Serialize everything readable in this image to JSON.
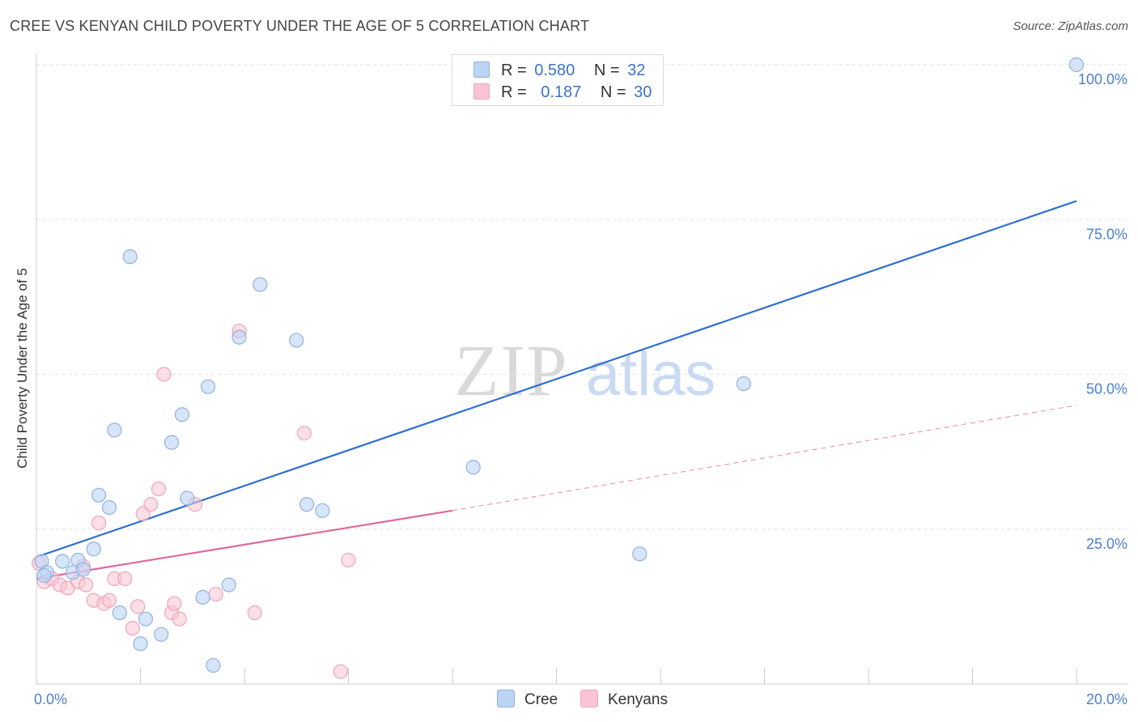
{
  "title": "CREE VS KENYAN CHILD POVERTY UNDER THE AGE OF 5 CORRELATION CHART",
  "source": "Source: ZipAtlas.com",
  "watermark": {
    "zip": "ZIP",
    "atlas": "atlas"
  },
  "legend": {
    "rows": [
      {
        "r_label": "R =",
        "r_value": "0.580",
        "n_label": "N =",
        "n_value": "32"
      },
      {
        "r_label": "R =",
        "r_value": "0.187",
        "n_label": "N =",
        "n_value": "30"
      }
    ]
  },
  "bottom_legend": {
    "cree": "Cree",
    "kenyans": "Kenyans"
  },
  "colors": {
    "cree_fill": "#bcd4f4",
    "cree_stroke": "#8fb2e0",
    "cree_line": "#2f6fd0",
    "kenyan_fill": "#f9c4d4",
    "kenyan_stroke": "#eea5bb",
    "kenyan_line": "#e0689a",
    "tick_label": "#4a7fd0"
  },
  "chart_data": {
    "type": "scatter",
    "title": "CREE VS KENYAN CHILD POVERTY UNDER THE AGE OF 5 CORRELATION CHART",
    "xlabel": "",
    "ylabel": "Child Poverty Under the Age of 5",
    "xlim": [
      0,
      20
    ],
    "ylim": [
      0,
      100
    ],
    "x_tick_labels": [
      {
        "value": 0,
        "label": "0.0%"
      },
      {
        "value": 20,
        "label": "20.0%"
      }
    ],
    "y_tick_labels": [
      {
        "value": 25,
        "label": "25.0%"
      },
      {
        "value": 50,
        "label": "50.0%"
      },
      {
        "value": 75,
        "label": "75.0%"
      },
      {
        "value": 100,
        "label": "100.0%"
      }
    ],
    "grid": "horizontal-dashed",
    "legend_position": "top-center",
    "series": [
      {
        "name": "Cree",
        "R": 0.58,
        "N": 32,
        "points": [
          [
            0.1,
            19.8
          ],
          [
            0.2,
            18.0
          ],
          [
            0.5,
            19.8
          ],
          [
            0.7,
            18.0
          ],
          [
            0.8,
            20.0
          ],
          [
            0.9,
            18.5
          ],
          [
            1.1,
            21.8
          ],
          [
            1.2,
            30.5
          ],
          [
            1.4,
            28.5
          ],
          [
            1.5,
            41.0
          ],
          [
            1.6,
            11.5
          ],
          [
            1.8,
            69.0
          ],
          [
            2.0,
            6.5
          ],
          [
            2.1,
            10.5
          ],
          [
            2.4,
            8.0
          ],
          [
            2.6,
            39.0
          ],
          [
            2.8,
            43.5
          ],
          [
            2.9,
            30.0
          ],
          [
            3.2,
            14.0
          ],
          [
            3.3,
            48.0
          ],
          [
            3.4,
            3.0
          ],
          [
            3.7,
            16.0
          ],
          [
            3.9,
            56.0
          ],
          [
            4.3,
            64.5
          ],
          [
            5.0,
            55.5
          ],
          [
            5.2,
            29.0
          ],
          [
            5.5,
            28.0
          ],
          [
            8.4,
            35.0
          ],
          [
            11.6,
            21.0
          ],
          [
            13.6,
            48.5
          ],
          [
            20.0,
            100.0
          ],
          [
            0.15,
            17.5
          ]
        ],
        "trend": {
          "x": [
            0,
            20
          ],
          "y": [
            20.5,
            78.0
          ]
        }
      },
      {
        "name": "Kenyans",
        "R": 0.187,
        "N": 30,
        "points": [
          [
            0.05,
            19.5
          ],
          [
            0.15,
            16.5
          ],
          [
            0.3,
            17.0
          ],
          [
            0.45,
            16.0
          ],
          [
            0.6,
            15.5
          ],
          [
            0.8,
            16.5
          ],
          [
            0.9,
            19.0
          ],
          [
            0.95,
            16.0
          ],
          [
            1.1,
            13.5
          ],
          [
            1.2,
            26.0
          ],
          [
            1.3,
            13.0
          ],
          [
            1.4,
            13.5
          ],
          [
            1.5,
            17.0
          ],
          [
            1.7,
            17.0
          ],
          [
            1.85,
            9.0
          ],
          [
            1.95,
            12.5
          ],
          [
            2.05,
            27.5
          ],
          [
            2.2,
            29.0
          ],
          [
            2.35,
            31.5
          ],
          [
            2.45,
            50.0
          ],
          [
            2.6,
            11.5
          ],
          [
            2.65,
            13.0
          ],
          [
            2.75,
            10.5
          ],
          [
            3.05,
            29.0
          ],
          [
            3.45,
            14.5
          ],
          [
            3.9,
            57.0
          ],
          [
            4.2,
            11.5
          ],
          [
            5.15,
            40.5
          ],
          [
            5.85,
            2.0
          ],
          [
            6.0,
            20.0
          ]
        ],
        "trend_solid": {
          "x": [
            0,
            8
          ],
          "y": [
            17.0,
            28.0
          ]
        },
        "trend_dashed": {
          "x": [
            8,
            20
          ],
          "y": [
            28.0,
            45.0
          ]
        }
      }
    ]
  }
}
